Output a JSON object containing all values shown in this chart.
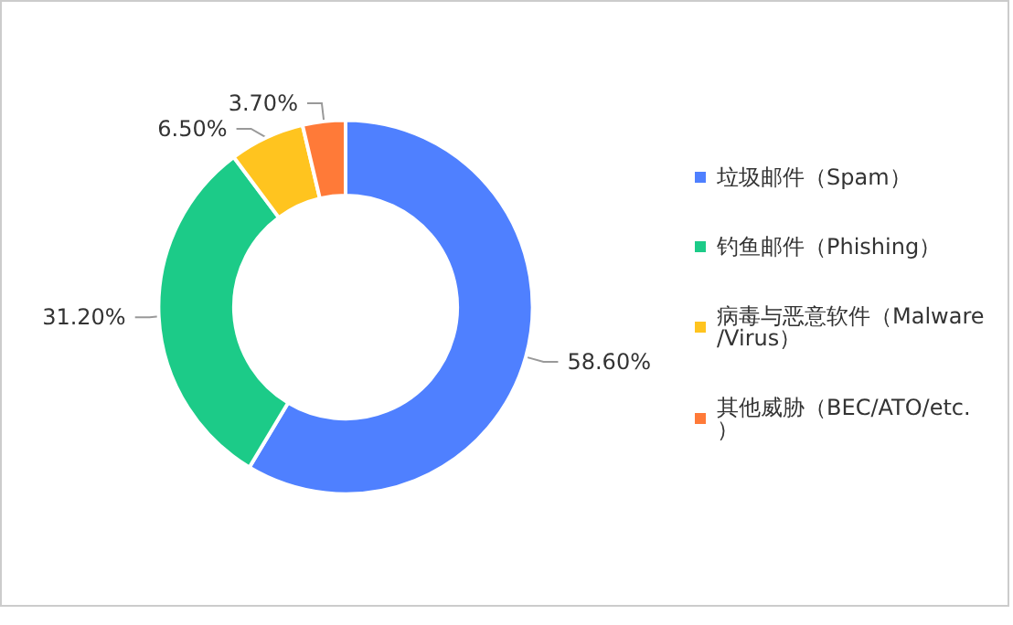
{
  "chart_data": {
    "type": "donut",
    "categories": [
      "垃圾邮件（Spam）",
      "钓鱼邮件（Phishing）",
      "病毒与恶意软件（Malware/Virus）",
      "其他威胁（BEC/ATO/etc.）"
    ],
    "values": [
      58.6,
      31.2,
      6.5,
      3.7
    ],
    "colors": [
      "#4f80ff",
      "#1ccb88",
      "#ffc41f",
      "#ff7a38"
    ],
    "value_labels": [
      "58.60%",
      "31.20%",
      "6.50%",
      "3.70%"
    ],
    "legend": "right"
  }
}
